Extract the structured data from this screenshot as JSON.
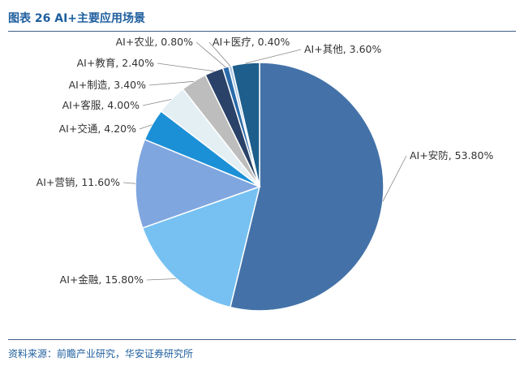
{
  "header": {
    "title": "图表 26 AI+主要应用场景"
  },
  "footer": {
    "source": "资料来源：前瞻产业研究，华安证券研究所"
  },
  "chart_data": {
    "type": "pie",
    "title": "",
    "slices": [
      {
        "label": "AI+安防, 53.80%",
        "name": "AI+安防",
        "value": 53.8,
        "color": "#4472a8"
      },
      {
        "label": "AI+金融, 15.80%",
        "name": "AI+金融",
        "value": 15.8,
        "color": "#76c1f2"
      },
      {
        "label": "AI+营销, 11.60%",
        "name": "AI+营销",
        "value": 11.6,
        "color": "#7fa6df"
      },
      {
        "label": "AI+交通, 4.20%",
        "name": "AI+交通",
        "value": 4.2,
        "color": "#1c90d6"
      },
      {
        "label": "AI+客服, 4.00%",
        "name": "AI+客服",
        "value": 4.0,
        "color": "#e4eff4"
      },
      {
        "label": "AI+制造, 3.40%",
        "name": "AI+制造",
        "value": 3.4,
        "color": "#bdbdbd"
      },
      {
        "label": "AI+教育, 2.40%",
        "name": "AI+教育",
        "value": 2.4,
        "color": "#2a4268"
      },
      {
        "label": "AI+农业, 0.80%",
        "name": "AI+农业",
        "value": 0.8,
        "color": "#2a6aa8"
      },
      {
        "label": "AI+医疗, 0.40%",
        "name": "AI+医疗",
        "value": 0.4,
        "color": "#a9c4e3"
      },
      {
        "label": "AI+其他, 3.60%",
        "name": "AI+其他",
        "value": 3.6,
        "color": "#1d5e8c"
      }
    ]
  }
}
